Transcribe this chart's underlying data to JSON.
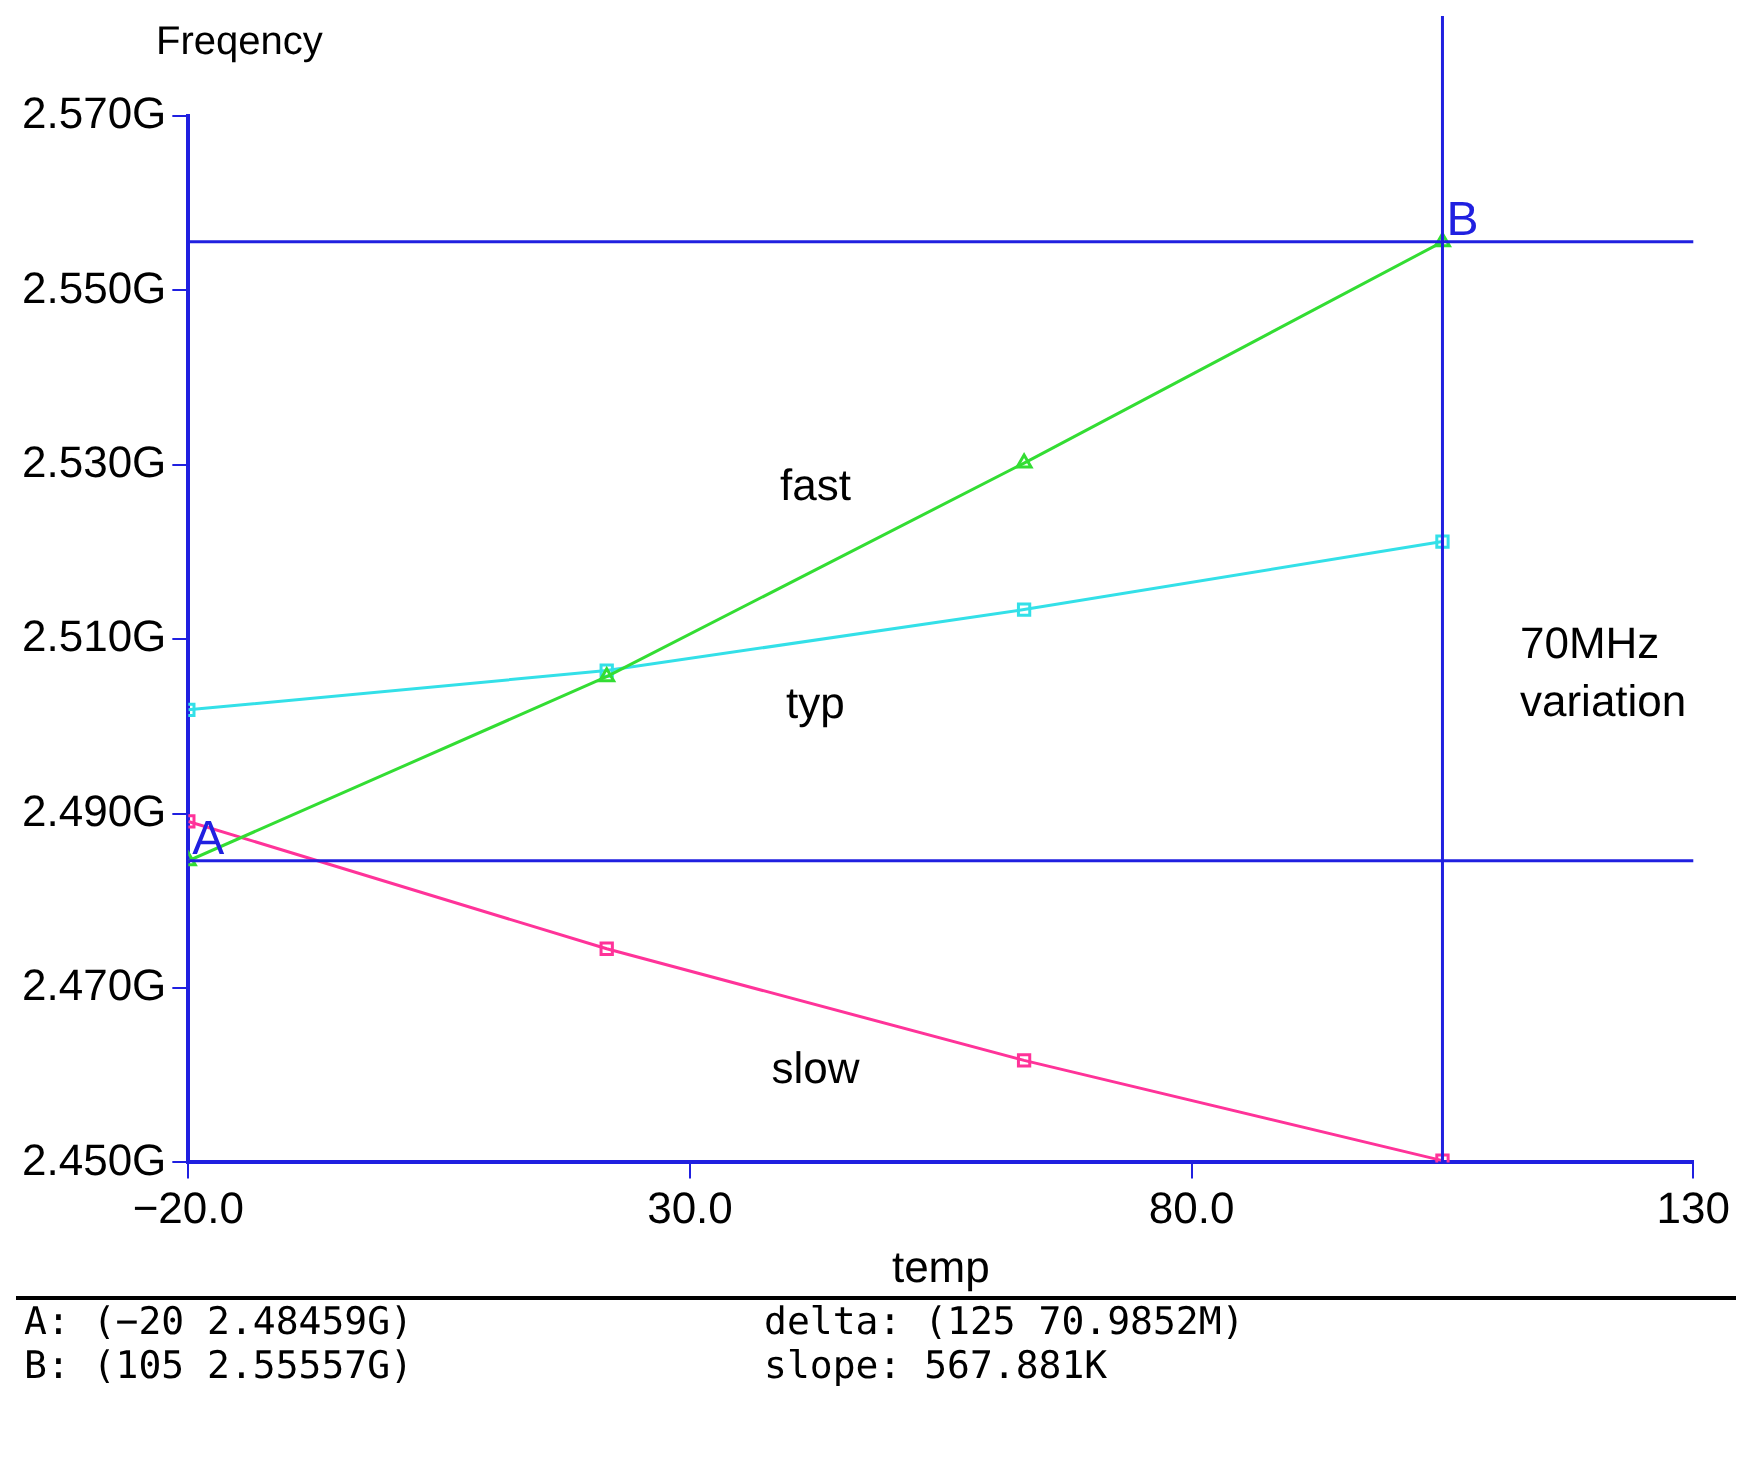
{
  "chart_data": {
    "type": "line",
    "ylabel": "Freqency",
    "xlabel": "temp",
    "x": [
      -20,
      21.7,
      63.3,
      105
    ],
    "series": [
      {
        "name": "fast",
        "color": "#33dd33",
        "marker": "triangle",
        "values": [
          2.48459,
          2.5057,
          2.5302,
          2.55557
        ]
      },
      {
        "name": "typ",
        "color": "#33e0e8",
        "marker": "square",
        "values": [
          2.5019,
          2.5064,
          2.5134,
          2.5212
        ]
      },
      {
        "name": "slow",
        "color": "#ff3399",
        "marker": "square",
        "values": [
          2.4891,
          2.4745,
          2.4617,
          2.4502
        ]
      }
    ],
    "xlim": [
      -20,
      130
    ],
    "xticks": [
      {
        "value": -20,
        "label": "−20.0"
      },
      {
        "value": 30,
        "label": "30.0"
      },
      {
        "value": 80,
        "label": "80.0"
      },
      130
    ],
    "ylim": [
      2.45,
      2.57
    ],
    "yticks": [
      {
        "value": 2.45,
        "label": "2.450G"
      },
      {
        "value": 2.47,
        "label": "2.470G"
      },
      {
        "value": 2.49,
        "label": "2.490G"
      },
      {
        "value": 2.51,
        "label": "2.510G"
      },
      {
        "value": 2.53,
        "label": "2.530G"
      },
      {
        "value": 2.55,
        "label": "2.550G"
      },
      {
        "value": 2.57,
        "label": "2.570G"
      }
    ],
    "ref_lines": [
      {
        "axis": "y",
        "value": 2.48459,
        "color": "#2020e0"
      },
      {
        "axis": "y",
        "value": 2.55557,
        "color": "#2020e0"
      },
      {
        "axis": "x",
        "value": 105,
        "color": "#2020e0"
      }
    ],
    "annotations": [
      "70MHz\nvariation",
      {
        "text": "A",
        "x": -20,
        "y": 2.48459
      },
      {
        "text": "B",
        "x": 105,
        "y": 2.55557
      },
      "A: (−20 2.48459G)",
      "delta: (125 70.9852M)",
      "B: (105 2.55557G)",
      "slope: 567.881K"
    ],
    "grid": false,
    "legend": false
  }
}
